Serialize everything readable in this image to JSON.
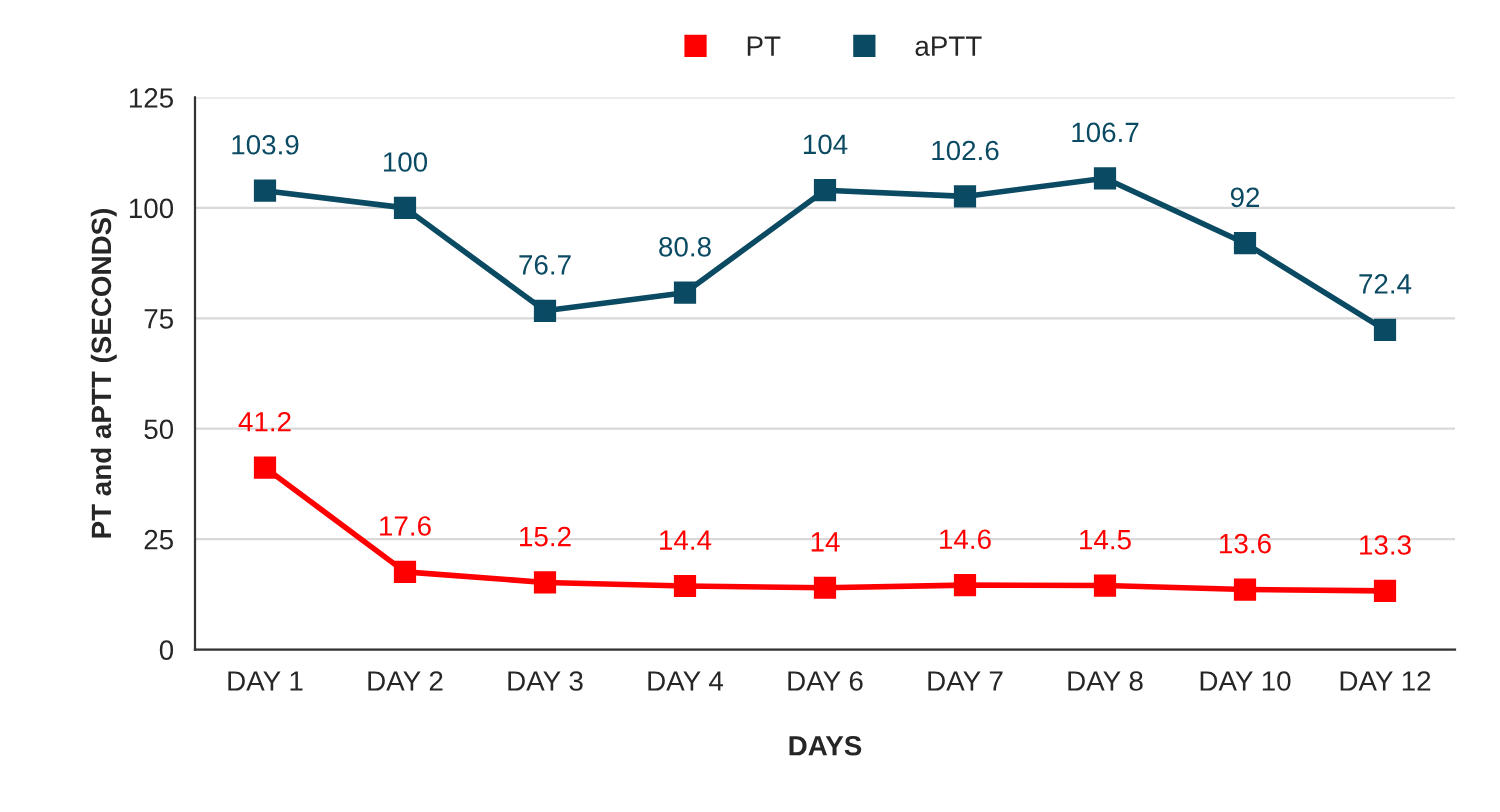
{
  "chart_data": {
    "type": "line",
    "xlabel": "DAYS",
    "ylabel": "PT and aPTT (SECONDS)",
    "categories": [
      "DAY 1",
      "DAY 2",
      "DAY 3",
      "DAY 4",
      "DAY 6",
      "DAY 7",
      "DAY 8",
      "DAY 10",
      "DAY 12"
    ],
    "series": [
      {
        "name": "PT",
        "color": "#ff0000",
        "values": [
          41.2,
          17.6,
          15.2,
          14.4,
          14,
          14.6,
          14.5,
          13.6,
          13.3
        ]
      },
      {
        "name": "aPTT",
        "color": "#0b4a63",
        "values": [
          103.9,
          100,
          76.7,
          80.8,
          104,
          102.6,
          106.7,
          92,
          72.4
        ]
      }
    ],
    "ylim": [
      0,
      125
    ],
    "yticks": [
      0,
      25,
      50,
      75,
      100,
      125
    ],
    "grid": "y",
    "legend": "top",
    "marker": "square",
    "line_style": "solid",
    "data_labels": true
  }
}
